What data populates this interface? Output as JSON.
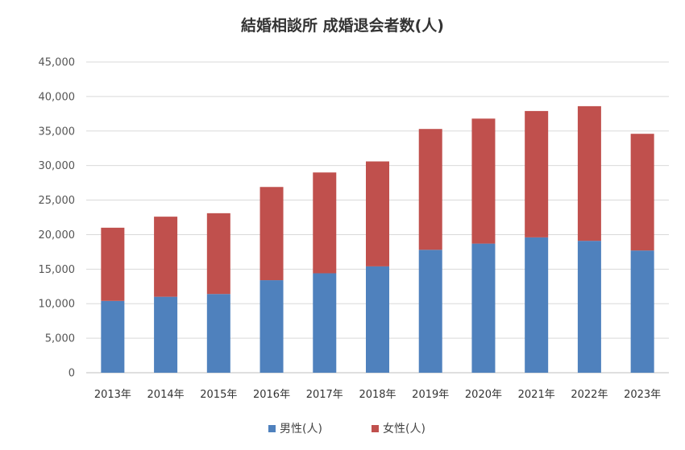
{
  "chart_data": {
    "type": "bar",
    "stacked": true,
    "title": "結婚相談所 成婚退会者数(人)",
    "categories": [
      "2013年",
      "2014年",
      "2015年",
      "2016年",
      "2017年",
      "2018年",
      "2019年",
      "2020年",
      "2021年",
      "2022年",
      "2023年"
    ],
    "series": [
      {
        "name": "男性(人)",
        "color": "#4F81BD",
        "values": [
          10400,
          11000,
          11400,
          13400,
          14400,
          15400,
          17800,
          18700,
          19600,
          19100,
          17700
        ]
      },
      {
        "name": "女性(人)",
        "color": "#C0504D",
        "values": [
          10600,
          11600,
          11700,
          13500,
          14600,
          15200,
          17500,
          18100,
          18300,
          19500,
          16900
        ]
      }
    ],
    "ylim": [
      0,
      45000
    ],
    "yticks": [
      "0",
      "5,000",
      "10,000",
      "15,000",
      "20,000",
      "25,000",
      "30,000",
      "35,000",
      "40,000",
      "45,000"
    ],
    "ytick_values": [
      0,
      5000,
      10000,
      15000,
      20000,
      25000,
      30000,
      35000,
      40000,
      45000
    ],
    "grid": true,
    "legend": "bottom-center",
    "xlabel": "",
    "ylabel": ""
  }
}
